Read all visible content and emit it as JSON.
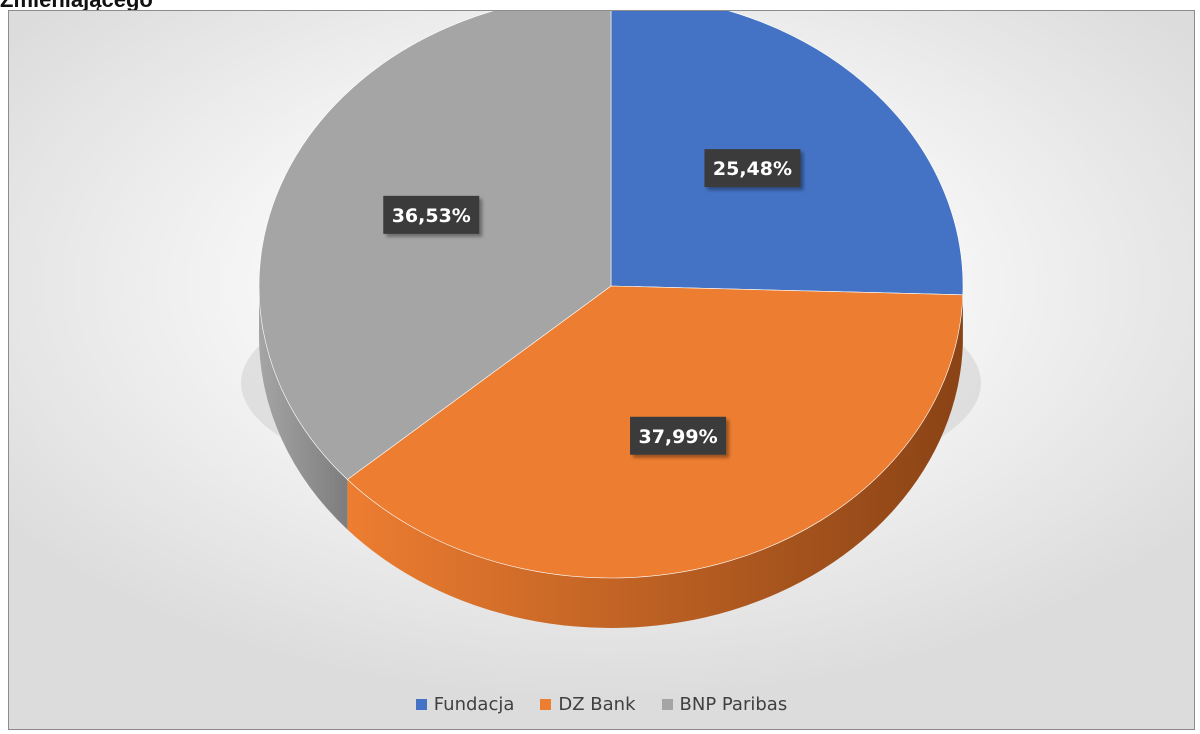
{
  "heading": "Zmieniającego",
  "chart_data": {
    "type": "pie",
    "title": "",
    "categories": [
      "Fundacja",
      "DZ Bank",
      "BNP Paribas"
    ],
    "values": [
      25.48,
      37.99,
      36.53
    ],
    "labels": [
      "25,48%",
      "37,99%",
      "36,53%"
    ],
    "colors": [
      "#4472c4",
      "#ed7d31",
      "#a5a5a5"
    ],
    "side_colors": [
      "#2e4f8a",
      "#8a4315",
      "#7d7d7d"
    ],
    "legend_position": "bottom",
    "style": "3d-pie"
  }
}
